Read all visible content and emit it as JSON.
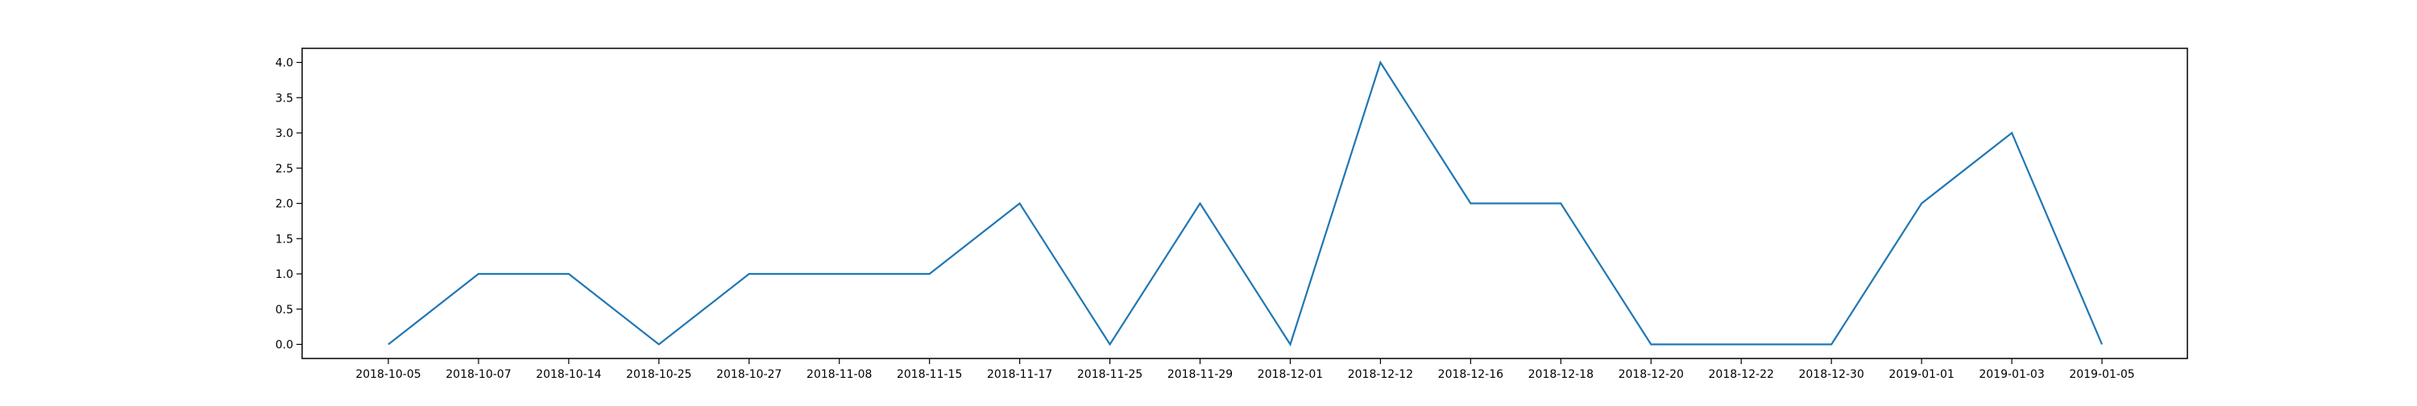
{
  "chart_data": {
    "type": "line",
    "title": "",
    "xlabel": "",
    "ylabel": "",
    "categories": [
      "2018-10-05",
      "2018-10-07",
      "2018-10-14",
      "2018-10-25",
      "2018-10-27",
      "2018-11-08",
      "2018-11-15",
      "2018-11-17",
      "2018-11-25",
      "2018-11-29",
      "2018-12-01",
      "2018-12-12",
      "2018-12-16",
      "2018-12-18",
      "2018-12-20",
      "2018-12-22",
      "2018-12-30",
      "2019-01-01",
      "2019-01-03",
      "2019-01-05"
    ],
    "series": [
      {
        "color": "#1f77b4",
        "values": [
          0,
          1,
          1,
          0,
          1,
          1,
          1,
          2,
          0,
          2,
          0,
          4,
          2,
          2,
          0,
          0,
          0,
          2,
          3,
          0
        ]
      }
    ],
    "ylim": [
      -0.2,
      4.2
    ],
    "yticks": [
      "0.0",
      "0.5",
      "1.0",
      "1.5",
      "2.0",
      "2.5",
      "3.0",
      "3.5",
      "4.0"
    ],
    "grid": false,
    "legend": "none"
  }
}
